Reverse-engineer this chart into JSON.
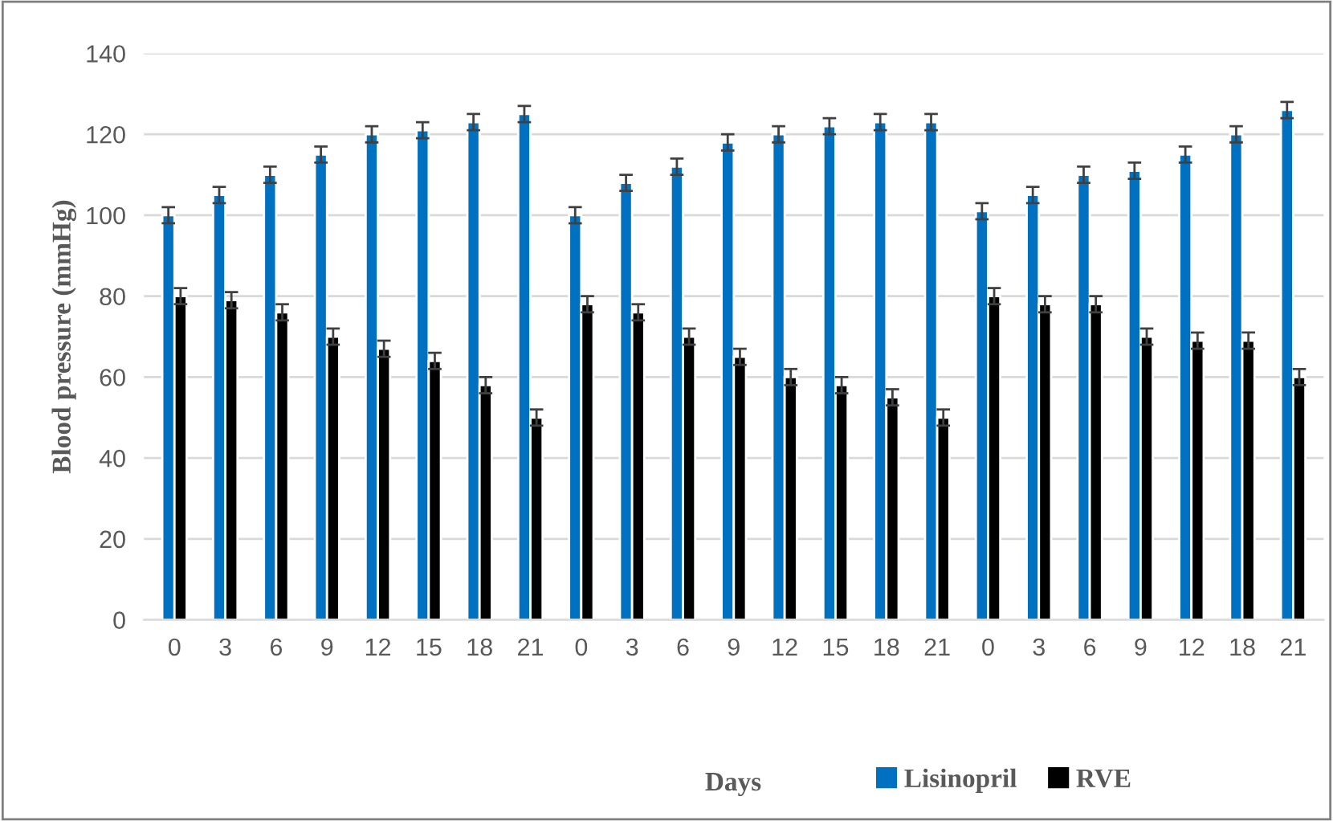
{
  "chart_data": {
    "type": "bar",
    "xlabel": "Days",
    "ylabel": "Blood pressure (mmHg)",
    "categories": [
      "0",
      "3",
      "6",
      "9",
      "12",
      "15",
      "18",
      "21",
      "0",
      "3",
      "6",
      "9",
      "12",
      "15",
      "18",
      "21",
      "0",
      "3",
      "6",
      "9",
      "12",
      "18",
      "21"
    ],
    "series": [
      {
        "name": "Lisinopril",
        "color": "#0070c0",
        "values": [
          100,
          105,
          110,
          115,
          120,
          121,
          123,
          125,
          100,
          108,
          112,
          118,
          120,
          122,
          123,
          123,
          101,
          105,
          110,
          111,
          115,
          120,
          126
        ],
        "errors": [
          2,
          2,
          2,
          2,
          2,
          2,
          2,
          2,
          2,
          2,
          2,
          2,
          2,
          2,
          2,
          2,
          2,
          2,
          2,
          2,
          2,
          2,
          2
        ]
      },
      {
        "name": "RVE",
        "color": "#000000",
        "values": [
          80,
          79,
          76,
          70,
          67,
          64,
          58,
          50,
          78,
          76,
          70,
          65,
          60,
          58,
          55,
          50,
          80,
          78,
          78,
          70,
          69,
          69,
          60
        ],
        "errors": [
          2,
          2,
          2,
          2,
          2,
          2,
          2,
          2,
          2,
          2,
          2,
          2,
          2,
          2,
          2,
          2,
          2,
          2,
          2,
          2,
          2,
          2,
          2
        ]
      }
    ],
    "ylim": [
      0,
      140
    ],
    "yticks": [
      0,
      20,
      40,
      60,
      80,
      100,
      120,
      140
    ],
    "grid": "y",
    "legend": "bottom"
  }
}
